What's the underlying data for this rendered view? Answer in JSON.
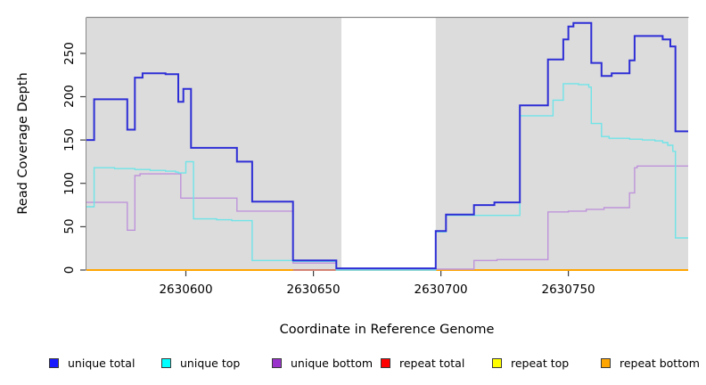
{
  "chart_data": {
    "type": "line",
    "style": "step-coverage-plot",
    "title": "",
    "xlabel": "Coordinate in Reference Genome",
    "ylabel": "Read Coverage Depth",
    "xlim": [
      2630561,
      2630797
    ],
    "ylim": [
      0,
      291
    ],
    "x_ticks": [
      2630600,
      2630650,
      2630700,
      2630750
    ],
    "y_ticks": [
      0,
      50,
      100,
      150,
      200,
      250
    ],
    "plot_background": "#DCDCDC",
    "border_color": "#8A8A8A",
    "masked_region": {
      "x_start": 2630661,
      "x_end": 2630698,
      "color": "#FFFFFF"
    },
    "draw_order": [
      "repeat top",
      "repeat total",
      "repeat bottom",
      "unique bottom",
      "unique top",
      "unique total"
    ],
    "series": [
      {
        "name": "unique total",
        "color": "#2E2ED6",
        "line_width": 2,
        "segments": [
          [
            [
              2630561,
              150
            ],
            [
              2630564,
              197
            ],
            [
              2630577,
              162
            ],
            [
              2630580,
              222
            ],
            [
              2630583,
              227
            ],
            [
              2630592,
              226
            ],
            [
              2630597,
              194
            ],
            [
              2630599,
              209
            ],
            [
              2630602,
              141
            ],
            [
              2630620,
              125
            ],
            [
              2630626,
              79
            ],
            [
              2630642,
              11
            ],
            [
              2630659,
              2
            ],
            [
              2630698,
              45
            ],
            [
              2630702,
              64
            ],
            [
              2630713,
              75
            ],
            [
              2630721,
              78
            ],
            [
              2630731,
              190
            ],
            [
              2630742,
              243
            ],
            [
              2630748,
              266
            ],
            [
              2630750,
              281
            ],
            [
              2630752,
              285
            ],
            [
              2630759,
              239
            ],
            [
              2630763,
              224
            ],
            [
              2630767,
              227
            ],
            [
              2630774,
              242
            ],
            [
              2630776,
              270
            ],
            [
              2630787,
              266
            ],
            [
              2630790,
              258
            ],
            [
              2630792,
              160
            ],
            [
              2630797,
              160
            ]
          ]
        ]
      },
      {
        "name": "unique top",
        "color": "#6FE4E8",
        "line_width": 1.4,
        "segments": [
          [
            [
              2630561,
              73
            ],
            [
              2630564,
              118
            ],
            [
              2630572,
              117
            ],
            [
              2630580,
              116
            ],
            [
              2630586,
              115
            ],
            [
              2630592,
              114
            ],
            [
              2630596,
              113
            ],
            [
              2630597,
              112
            ],
            [
              2630600,
              125
            ],
            [
              2630603,
              59
            ],
            [
              2630612,
              58
            ],
            [
              2630618,
              57
            ],
            [
              2630626,
              11
            ],
            [
              2630642,
              10
            ],
            [
              2630659,
              0
            ],
            [
              2630698,
              44
            ],
            [
              2630702,
              63
            ],
            [
              2630731,
              178
            ],
            [
              2630744,
              196
            ],
            [
              2630748,
              215
            ],
            [
              2630754,
              214
            ],
            [
              2630758,
              211
            ],
            [
              2630759,
              169
            ],
            [
              2630763,
              154
            ],
            [
              2630766,
              152
            ],
            [
              2630774,
              151
            ],
            [
              2630779,
              150
            ],
            [
              2630784,
              149
            ],
            [
              2630787,
              147
            ],
            [
              2630789,
              144
            ],
            [
              2630791,
              137
            ],
            [
              2630792,
              37
            ],
            [
              2630797,
              37
            ]
          ]
        ]
      },
      {
        "name": "unique bottom",
        "color": "#BE93DA",
        "line_width": 1.4,
        "segments": [
          [
            [
              2630561,
              78
            ],
            [
              2630577,
              46
            ],
            [
              2630580,
              109
            ],
            [
              2630582,
              111
            ],
            [
              2630598,
              83
            ],
            [
              2630620,
              68
            ],
            [
              2630642,
              8
            ],
            [
              2630659,
              1
            ],
            [
              2630713,
              11
            ],
            [
              2630722,
              12
            ],
            [
              2630742,
              67
            ],
            [
              2630750,
              68
            ],
            [
              2630757,
              70
            ],
            [
              2630764,
              72
            ],
            [
              2630774,
              89
            ],
            [
              2630776,
              118
            ],
            [
              2630777,
              120
            ],
            [
              2630797,
              120
            ]
          ]
        ]
      },
      {
        "name": "repeat total",
        "color": "#C95F5F",
        "line_width": 1.4,
        "segments": [
          [
            [
              2630561,
              0
            ],
            [
              2630797,
              0
            ]
          ]
        ]
      },
      {
        "name": "repeat top",
        "color": "#F2F200",
        "line_width": 1.2,
        "segments": [
          [
            [
              2630561,
              0
            ],
            [
              2630797,
              0
            ]
          ]
        ]
      },
      {
        "name": "repeat bottom",
        "color": "#FFA500",
        "line_width": 2,
        "segments": [
          [
            [
              2630561,
              0
            ],
            [
              2630642,
              0
            ]
          ],
          [
            [
              2630698,
              0
            ],
            [
              2630797,
              0
            ]
          ]
        ]
      }
    ]
  },
  "legend": {
    "items": [
      {
        "label": "unique total",
        "color": "#1A1AFF"
      },
      {
        "label": "unique top",
        "color": "#00FFFF"
      },
      {
        "label": "unique bottom",
        "color": "#9933CC"
      },
      {
        "label": "repeat total",
        "color": "#FF0000"
      },
      {
        "label": "repeat top",
        "color": "#FFFF00"
      },
      {
        "label": "repeat bottom",
        "color": "#FFA500"
      }
    ]
  }
}
